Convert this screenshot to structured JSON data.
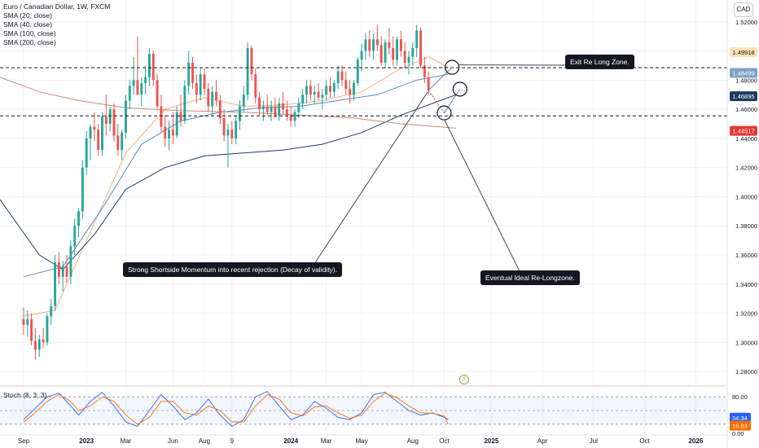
{
  "header": {
    "title": "Euro / Canadian Dollar, 1W, FXCM",
    "indicators": [
      "SMA (20, close)",
      "SMA (40, close)",
      "SMA (100, close)",
      "SMA (200, close)"
    ],
    "currency": "CAD"
  },
  "stoch": {
    "title": "Stoch (8, 3, 3)",
    "value_k": "34.34",
    "value_d": "16.83",
    "levels": [
      "80.00",
      "0.00"
    ]
  },
  "price_labels": {
    "tags": [
      {
        "text": "1.49918",
        "bg": "#ffe0b2",
        "color": "#131722",
        "value": 1.49918
      },
      {
        "text": "1.48499",
        "bg": "#7fa3c7",
        "color": "#ffffff",
        "value": 1.48499
      },
      {
        "text": "1.46895",
        "bg": "#1f3a5f",
        "color": "#ffffff",
        "value": 1.46895
      },
      {
        "text": "1.44517",
        "bg": "#e53935",
        "color": "#ffffff",
        "value": 1.44517
      }
    ]
  },
  "annotations": {
    "exit_zone": "Exit Re Long Zone.",
    "momentum": "Strong Shortside Momentum into recent rejection (Decay of validity).",
    "relong_zone": "Eventual Ideal Re-Longzone."
  },
  "colors": {
    "up": "#26a69a",
    "down": "#ef5350",
    "sma20": "#f0b27a",
    "sma40": "#5b8ab5",
    "sma100": "#1f3a5f",
    "sma200": "#c98a7a",
    "stoch_k": "#2962ff",
    "stoch_d": "#ff6d00"
  },
  "chart_data": {
    "type": "candlestick",
    "title": "Euro / Canadian Dollar, 1W, FXCM",
    "y_axis": {
      "ticks": [
        1.28,
        1.3,
        1.32,
        1.34,
        1.36,
        1.38,
        1.4,
        1.42,
        1.44,
        1.46,
        1.48,
        1.5,
        1.52
      ],
      "tick_labels": [
        "1.28000",
        "1.30000",
        "1.32000",
        "1.34000",
        "1.36000",
        "1.38000",
        "1.40000",
        "1.42000",
        "1.44000",
        "1.46000",
        "1.48000",
        "1.50000",
        "1.52000"
      ],
      "range": [
        1.27,
        1.535
      ]
    },
    "x_axis": {
      "tick_labels": [
        "Sep",
        "2023",
        "Mar",
        "Jun",
        "Aug",
        "9",
        "2024",
        "Mar",
        "May",
        "Aug",
        "Oct",
        "2025",
        "Apr",
        "Jul",
        "Oct",
        "2026"
      ],
      "tick_weeks": [
        0,
        16,
        26,
        38,
        46,
        53,
        68,
        77,
        86,
        99,
        107,
        119,
        132,
        145,
        158,
        171
      ],
      "range_weeks": [
        -6,
        179
      ]
    },
    "candles_ohlc": [
      [
        1.316,
        1.324,
        1.305,
        1.312
      ],
      [
        1.312,
        1.322,
        1.304,
        1.316
      ],
      [
        1.316,
        1.32,
        1.298,
        1.301
      ],
      [
        1.301,
        1.31,
        1.288,
        1.295
      ],
      [
        1.295,
        1.305,
        1.29,
        1.302
      ],
      [
        1.302,
        1.31,
        1.296,
        1.3
      ],
      [
        1.3,
        1.32,
        1.298,
        1.318
      ],
      [
        1.318,
        1.33,
        1.312,
        1.325
      ],
      [
        1.325,
        1.36,
        1.322,
        1.355
      ],
      [
        1.355,
        1.362,
        1.34,
        1.345
      ],
      [
        1.345,
        1.356,
        1.335,
        1.352
      ],
      [
        1.352,
        1.36,
        1.341,
        1.345
      ],
      [
        1.345,
        1.37,
        1.34,
        1.366
      ],
      [
        1.366,
        1.385,
        1.36,
        1.38
      ],
      [
        1.38,
        1.392,
        1.372,
        1.39
      ],
      [
        1.39,
        1.425,
        1.385,
        1.42
      ],
      [
        1.42,
        1.445,
        1.415,
        1.44
      ],
      [
        1.44,
        1.45,
        1.425,
        1.448
      ],
      [
        1.448,
        1.458,
        1.438,
        1.446
      ],
      [
        1.446,
        1.45,
        1.428,
        1.432
      ],
      [
        1.432,
        1.458,
        1.428,
        1.455
      ],
      [
        1.455,
        1.47,
        1.442,
        1.45
      ],
      [
        1.45,
        1.462,
        1.445,
        1.46
      ],
      [
        1.46,
        1.464,
        1.438,
        1.442
      ],
      [
        1.442,
        1.45,
        1.428,
        1.432
      ],
      [
        1.432,
        1.446,
        1.425,
        1.444
      ],
      [
        1.444,
        1.47,
        1.44,
        1.466
      ],
      [
        1.466,
        1.48,
        1.46,
        1.476
      ],
      [
        1.476,
        1.496,
        1.47,
        1.48
      ],
      [
        1.48,
        1.51,
        1.474,
        1.47
      ],
      [
        1.47,
        1.482,
        1.462,
        1.478
      ],
      [
        1.478,
        1.49,
        1.47,
        1.482
      ],
      [
        1.482,
        1.502,
        1.476,
        1.498
      ],
      [
        1.498,
        1.5,
        1.476,
        1.48
      ],
      [
        1.48,
        1.484,
        1.46,
        1.462
      ],
      [
        1.462,
        1.47,
        1.444,
        1.448
      ],
      [
        1.448,
        1.456,
        1.434,
        1.44
      ],
      [
        1.44,
        1.452,
        1.432,
        1.446
      ],
      [
        1.446,
        1.458,
        1.436,
        1.442
      ],
      [
        1.442,
        1.462,
        1.44,
        1.458
      ],
      [
        1.458,
        1.47,
        1.448,
        1.452
      ],
      [
        1.452,
        1.48,
        1.45,
        1.476
      ],
      [
        1.476,
        1.5,
        1.47,
        1.492
      ],
      [
        1.492,
        1.496,
        1.474,
        1.478
      ],
      [
        1.478,
        1.484,
        1.464,
        1.47
      ],
      [
        1.47,
        1.488,
        1.466,
        1.484
      ],
      [
        1.484,
        1.488,
        1.47,
        1.474
      ],
      [
        1.474,
        1.478,
        1.458,
        1.462
      ],
      [
        1.462,
        1.476,
        1.456,
        1.472
      ],
      [
        1.472,
        1.48,
        1.462,
        1.466
      ],
      [
        1.466,
        1.47,
        1.45,
        1.454
      ],
      [
        1.454,
        1.46,
        1.438,
        1.442
      ],
      [
        1.442,
        1.45,
        1.42,
        1.446
      ],
      [
        1.446,
        1.452,
        1.436,
        1.44
      ],
      [
        1.44,
        1.456,
        1.436,
        1.452
      ],
      [
        1.452,
        1.466,
        1.446,
        1.462
      ],
      [
        1.462,
        1.476,
        1.458,
        1.47
      ],
      [
        1.47,
        1.506,
        1.466,
        1.502
      ],
      [
        1.502,
        1.504,
        1.48,
        1.484
      ],
      [
        1.484,
        1.488,
        1.464,
        1.468
      ],
      [
        1.468,
        1.472,
        1.456,
        1.46
      ],
      [
        1.46,
        1.466,
        1.452,
        1.462
      ],
      [
        1.462,
        1.47,
        1.456,
        1.458
      ],
      [
        1.458,
        1.466,
        1.452,
        1.462
      ],
      [
        1.462,
        1.468,
        1.454,
        1.456
      ],
      [
        1.456,
        1.468,
        1.452,
        1.464
      ],
      [
        1.464,
        1.472,
        1.456,
        1.46
      ],
      [
        1.46,
        1.466,
        1.452,
        1.456
      ],
      [
        1.456,
        1.462,
        1.448,
        1.452
      ],
      [
        1.452,
        1.46,
        1.448,
        1.458
      ],
      [
        1.458,
        1.468,
        1.454,
        1.464
      ],
      [
        1.464,
        1.474,
        1.46,
        1.47
      ],
      [
        1.47,
        1.48,
        1.464,
        1.476
      ],
      [
        1.476,
        1.48,
        1.466,
        1.47
      ],
      [
        1.47,
        1.476,
        1.464,
        1.472
      ],
      [
        1.472,
        1.478,
        1.466,
        1.468
      ],
      [
        1.468,
        1.474,
        1.46,
        1.47
      ],
      [
        1.47,
        1.48,
        1.466,
        1.476
      ],
      [
        1.476,
        1.482,
        1.468,
        1.472
      ],
      [
        1.472,
        1.48,
        1.468,
        1.478
      ],
      [
        1.478,
        1.49,
        1.474,
        1.486
      ],
      [
        1.486,
        1.49,
        1.476,
        1.48
      ],
      [
        1.48,
        1.486,
        1.47,
        1.474
      ],
      [
        1.474,
        1.48,
        1.464,
        1.47
      ],
      [
        1.47,
        1.48,
        1.466,
        1.478
      ],
      [
        1.478,
        1.496,
        1.476,
        1.494
      ],
      [
        1.494,
        1.505,
        1.486,
        1.5
      ],
      [
        1.5,
        1.512,
        1.494,
        1.508
      ],
      [
        1.508,
        1.514,
        1.496,
        1.5
      ],
      [
        1.5,
        1.512,
        1.494,
        1.508
      ],
      [
        1.508,
        1.518,
        1.5,
        1.504
      ],
      [
        1.504,
        1.51,
        1.49,
        1.492
      ],
      [
        1.492,
        1.508,
        1.488,
        1.506
      ],
      [
        1.506,
        1.516,
        1.498,
        1.502
      ],
      [
        1.502,
        1.51,
        1.49,
        1.494
      ],
      [
        1.494,
        1.51,
        1.49,
        1.508
      ],
      [
        1.508,
        1.514,
        1.496,
        1.5
      ],
      [
        1.5,
        1.506,
        1.488,
        1.492
      ],
      [
        1.492,
        1.5,
        1.484,
        1.496
      ],
      [
        1.496,
        1.506,
        1.49,
        1.502
      ],
      [
        1.502,
        1.518,
        1.496,
        1.514
      ],
      [
        1.514,
        1.516,
        1.488,
        1.49
      ],
      [
        1.49,
        1.496,
        1.478,
        1.482
      ],
      [
        1.482,
        1.486,
        1.47,
        1.473
      ]
    ],
    "sma_series": [
      {
        "name": "SMA (20, close)",
        "points": [
          [
            0,
            1.318
          ],
          [
            8,
            1.322
          ],
          [
            16,
            1.37
          ],
          [
            26,
            1.43
          ],
          [
            36,
            1.46
          ],
          [
            46,
            1.468
          ],
          [
            56,
            1.462
          ],
          [
            66,
            1.463
          ],
          [
            76,
            1.466
          ],
          [
            86,
            1.472
          ],
          [
            96,
            1.488
          ],
          [
            103,
            1.496
          ],
          [
            108,
            1.489
          ]
        ]
      },
      {
        "name": "SMA (40, close)",
        "points": [
          [
            0,
            1.345
          ],
          [
            10,
            1.352
          ],
          [
            20,
            1.392
          ],
          [
            30,
            1.436
          ],
          [
            40,
            1.452
          ],
          [
            50,
            1.458
          ],
          [
            60,
            1.461
          ],
          [
            70,
            1.462
          ],
          [
            80,
            1.466
          ],
          [
            90,
            1.47
          ],
          [
            100,
            1.48
          ],
          [
            108,
            1.484
          ]
        ]
      },
      {
        "name": "SMA (100, close)",
        "points": [
          [
            -6,
            1.398
          ],
          [
            4,
            1.36
          ],
          [
            10,
            1.35
          ],
          [
            18,
            1.374
          ],
          [
            26,
            1.405
          ],
          [
            36,
            1.42
          ],
          [
            46,
            1.428
          ],
          [
            56,
            1.43
          ],
          [
            66,
            1.432
          ],
          [
            76,
            1.436
          ],
          [
            86,
            1.444
          ],
          [
            96,
            1.456
          ],
          [
            104,
            1.464
          ],
          [
            110,
            1.47
          ]
        ]
      },
      {
        "name": "SMA (200, close)",
        "points": [
          [
            -6,
            1.482
          ],
          [
            4,
            1.472
          ],
          [
            14,
            1.466
          ],
          [
            26,
            1.461
          ],
          [
            40,
            1.459
          ],
          [
            56,
            1.458
          ],
          [
            70,
            1.456
          ],
          [
            84,
            1.454
          ],
          [
            96,
            1.45
          ],
          [
            110,
            1.447
          ]
        ]
      }
    ],
    "horizontal_lines": [
      1.4885,
      1.4555
    ],
    "stochastic": {
      "k": [
        [
          0,
          30
        ],
        [
          3,
          55
        ],
        [
          6,
          80
        ],
        [
          9,
          88
        ],
        [
          12,
          60
        ],
        [
          14,
          40
        ],
        [
          17,
          70
        ],
        [
          20,
          90
        ],
        [
          23,
          60
        ],
        [
          26,
          25
        ],
        [
          29,
          15
        ],
        [
          32,
          50
        ],
        [
          35,
          85
        ],
        [
          38,
          60
        ],
        [
          41,
          30
        ],
        [
          44,
          45
        ],
        [
          47,
          75
        ],
        [
          50,
          40
        ],
        [
          53,
          15
        ],
        [
          56,
          30
        ],
        [
          59,
          80
        ],
        [
          62,
          92
        ],
        [
          65,
          60
        ],
        [
          68,
          30
        ],
        [
          71,
          40
        ],
        [
          74,
          70
        ],
        [
          77,
          55
        ],
        [
          80,
          35
        ],
        [
          83,
          30
        ],
        [
          86,
          45
        ],
        [
          89,
          85
        ],
        [
          92,
          90
        ],
        [
          95,
          70
        ],
        [
          98,
          50
        ],
        [
          101,
          40
        ],
        [
          104,
          45
        ],
        [
          107,
          35
        ],
        [
          108,
          30
        ]
      ],
      "d": [
        [
          0,
          25
        ],
        [
          3,
          45
        ],
        [
          6,
          70
        ],
        [
          9,
          85
        ],
        [
          12,
          70
        ],
        [
          14,
          50
        ],
        [
          17,
          60
        ],
        [
          20,
          80
        ],
        [
          23,
          70
        ],
        [
          26,
          40
        ],
        [
          29,
          20
        ],
        [
          32,
          35
        ],
        [
          35,
          70
        ],
        [
          38,
          70
        ],
        [
          41,
          45
        ],
        [
          44,
          40
        ],
        [
          47,
          60
        ],
        [
          50,
          50
        ],
        [
          53,
          25
        ],
        [
          56,
          25
        ],
        [
          59,
          60
        ],
        [
          62,
          85
        ],
        [
          65,
          75
        ],
        [
          68,
          45
        ],
        [
          71,
          38
        ],
        [
          74,
          58
        ],
        [
          77,
          60
        ],
        [
          80,
          45
        ],
        [
          83,
          33
        ],
        [
          86,
          40
        ],
        [
          89,
          70
        ],
        [
          92,
          88
        ],
        [
          95,
          78
        ],
        [
          98,
          60
        ],
        [
          101,
          45
        ],
        [
          104,
          44
        ],
        [
          107,
          38
        ],
        [
          108,
          20
        ]
      ]
    }
  }
}
